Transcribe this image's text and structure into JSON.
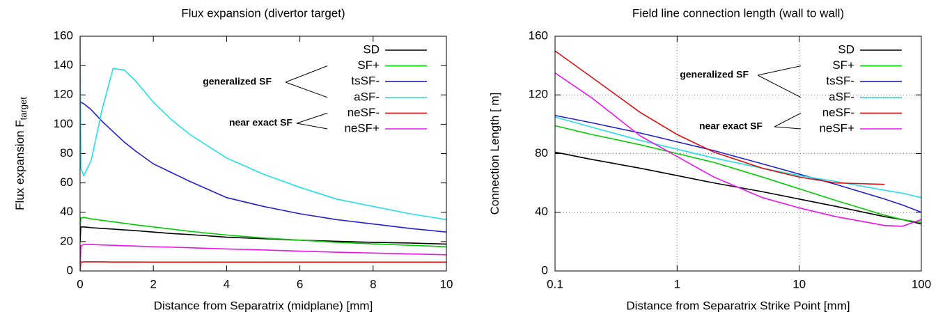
{
  "chart_data": [
    {
      "type": "line",
      "title": "Flux expansion (divertor target)",
      "xlabel": "Distance from Separatrix (midplane) [mm]",
      "ylabel": "Flux expansion F",
      "ylabel_subscript": "target",
      "xscale": "linear",
      "grid": false,
      "legend": "top right",
      "xlim": [
        0,
        10
      ],
      "xticks": [
        0,
        2,
        4,
        6,
        8,
        10
      ],
      "ylim": [
        0,
        160
      ],
      "yticks": [
        0,
        20,
        40,
        60,
        80,
        100,
        120,
        140,
        160
      ],
      "x": [
        0,
        0.02,
        0.1,
        0.3,
        0.6,
        0.9,
        1.2,
        1.5,
        2,
        2.5,
        3,
        4,
        5,
        6,
        7,
        8,
        9,
        10
      ],
      "series": [
        {
          "name": "SD",
          "color": "#000000",
          "values": [
            20,
            30,
            30,
            29.5,
            29,
            28.5,
            28,
            27.5,
            26.5,
            25.5,
            24.8,
            23,
            22,
            21,
            20.2,
            19.5,
            19,
            18.3
          ]
        },
        {
          "name": "SF+",
          "color": "#00cc00",
          "values": [
            30,
            36,
            36.5,
            35.5,
            34.5,
            33.5,
            32.5,
            31.5,
            30,
            28.5,
            27,
            24.5,
            22.5,
            21,
            19.5,
            18.5,
            17.5,
            16.5
          ]
        },
        {
          "name": "tsSF-",
          "color": "#1f1fd0",
          "values": [
            115,
            115,
            114,
            110,
            102,
            95,
            88,
            82,
            73,
            67,
            61,
            50,
            44,
            39,
            35,
            32,
            29,
            26.5
          ]
        },
        {
          "name": "aSF-",
          "color": "#22e0e8",
          "values": [
            160,
            70,
            65,
            75,
            110,
            138,
            137,
            130,
            115,
            103,
            93,
            77,
            66,
            57,
            49,
            44,
            39,
            35
          ]
        },
        {
          "name": "neSF-",
          "color": "#dd1111",
          "values": [
            0,
            6,
            6.2,
            6.2,
            6.2,
            6.1,
            6.1,
            6.1,
            6,
            6,
            6,
            6,
            6,
            6,
            6,
            6,
            6,
            6
          ]
        },
        {
          "name": "neSF+",
          "color": "#ee11ee",
          "values": [
            0,
            17,
            18,
            18,
            17.7,
            17.5,
            17.2,
            17,
            16.5,
            16.2,
            15.8,
            15,
            14.3,
            13.5,
            12.8,
            12.2,
            11.6,
            11
          ]
        }
      ],
      "annotations": [
        {
          "text": "generalized SF"
        },
        {
          "text": "near exact SF"
        }
      ]
    },
    {
      "type": "line",
      "title": "Field line connection length (wall to wall)",
      "xlabel": "Distance from Separatrix Strike Point [mm]",
      "ylabel": "Connection Length [ m]",
      "xscale": "log",
      "grid": true,
      "legend": "top right",
      "xlim": [
        0.1,
        100
      ],
      "xticks": [
        0.1,
        1,
        10,
        100
      ],
      "ylim": [
        0,
        160
      ],
      "yticks": [
        0,
        40,
        80,
        120,
        160
      ],
      "x": [
        0.1,
        0.2,
        0.5,
        1,
        2,
        5,
        10,
        20,
        50,
        70,
        100
      ],
      "series": [
        {
          "name": "SD",
          "color": "#000000",
          "values": [
            81,
            76,
            70,
            65,
            60,
            54,
            49,
            44,
            37,
            35,
            32
          ]
        },
        {
          "name": "SF+",
          "color": "#00cc00",
          "values": [
            99,
            93,
            86,
            80,
            74,
            64,
            56,
            48,
            38,
            35,
            33
          ]
        },
        {
          "name": "tsSF-",
          "color": "#1f1fd0",
          "values": [
            106,
            101,
            94,
            88,
            82,
            73,
            66,
            59,
            49,
            45,
            40
          ]
        },
        {
          "name": "aSF-",
          "color": "#22e0e8",
          "values": [
            105,
            98,
            89,
            83,
            77,
            70,
            65,
            61,
            55,
            53,
            50
          ]
        },
        {
          "name": "neSF-",
          "color": "#dd1111",
          "values": [
            150,
            132,
            108,
            93,
            81,
            70,
            64,
            60,
            59,
            null,
            null
          ]
        },
        {
          "name": "neSF+",
          "color": "#ee11ee",
          "values": [
            135,
            118,
            92,
            78,
            64,
            50,
            43,
            37,
            31,
            30.5,
            35
          ]
        }
      ],
      "annotations": [
        {
          "text": "generalized SF"
        },
        {
          "text": "near exact SF"
        }
      ]
    }
  ]
}
